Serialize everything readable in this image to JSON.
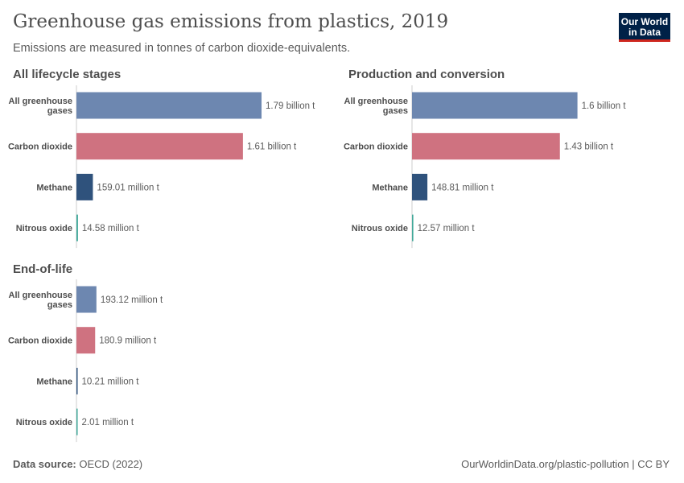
{
  "header": {
    "title": "Greenhouse gas emissions from plastics, 2019",
    "subtitle": "Emissions are measured in tonnes of carbon dioxide-equivalents.",
    "logo": "Our World in Data"
  },
  "footer": {
    "source_label": "Data source:",
    "source": "OECD (2022)",
    "credit": "OurWorldinData.org/plastic-pollution | CC BY"
  },
  "colors": {
    "All greenhouse gases": "#6d87b0",
    "Carbon dioxide": "#cf7280",
    "Methane": "#2f527c",
    "Nitrous oxide": "#3ea798"
  },
  "chart_data": [
    {
      "type": "bar",
      "orientation": "horizontal",
      "title": "All lifecycle stages",
      "categories": [
        "All greenhouse gases",
        "Carbon dioxide",
        "Methane",
        "Nitrous oxide"
      ],
      "values": [
        1790000000,
        1610000000,
        159010000,
        14580000
      ],
      "labels": [
        "1.79 billion t",
        "1.61 billion t",
        "159.01 million t",
        "14.58 million t"
      ]
    },
    {
      "type": "bar",
      "orientation": "horizontal",
      "title": "Production and conversion",
      "categories": [
        "All greenhouse gases",
        "Carbon dioxide",
        "Methane",
        "Nitrous oxide"
      ],
      "values": [
        1600000000,
        1430000000,
        148810000,
        12570000
      ],
      "labels": [
        "1.6 billion t",
        "1.43 billion t",
        "148.81 million t",
        "12.57 million t"
      ]
    },
    {
      "type": "bar",
      "orientation": "horizontal",
      "title": "End-of-life",
      "categories": [
        "All greenhouse gases",
        "Carbon dioxide",
        "Methane",
        "Nitrous oxide"
      ],
      "values": [
        193120000,
        180900000,
        10210000,
        2010000
      ],
      "labels": [
        "193.12 million t",
        "180.9 million t",
        "10.21 million t",
        "2.01 million t"
      ]
    }
  ]
}
